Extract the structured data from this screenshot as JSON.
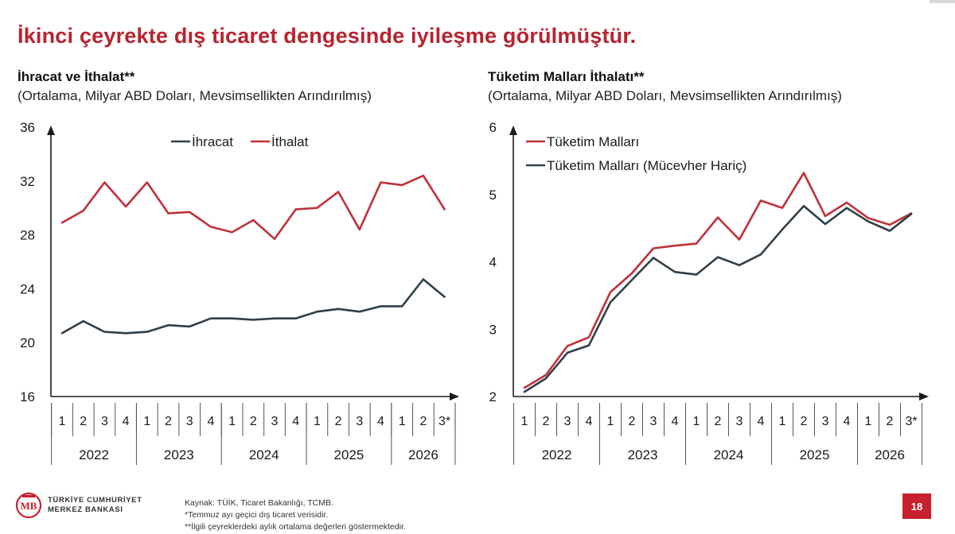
{
  "slide": {
    "title": "İkinci çeyrekte dış ticaret dengesinde iyileşme görülmüştür.",
    "page_number": "18",
    "footer": {
      "org_line1": "TÜRKİYE CUMHURİYET",
      "org_line2": "MERKEZ BANKASI",
      "source": "Kaynak: TÜİK, Ticaret Bakanlığı, TCMB.",
      "note1": "*Temmuz ayı geçici dış ticaret verisidir.",
      "note2": "**İlgili çeyreklerdeki aylık ortalama değerleri göstermektedir."
    }
  },
  "colors": {
    "title_red": "#b8232f",
    "series_red": "#c0303a",
    "series_dark": "#2f3f48",
    "axis": "#1a1a1a"
  },
  "chart_data": [
    {
      "type": "line",
      "title": "İhracat ve İthalat**",
      "subtitle": "(Ortalama, Milyar ABD Doları, Mevsimsellikten Arındırılmış)",
      "x": [
        "1",
        "2",
        "3",
        "4",
        "1",
        "2",
        "3",
        "4",
        "1",
        "2",
        "3",
        "4",
        "1",
        "2",
        "3",
        "4",
        "1",
        "2",
        "3*"
      ],
      "year_groups": [
        {
          "label": "2022",
          "count": 4
        },
        {
          "label": "2023",
          "count": 4
        },
        {
          "label": "2024",
          "count": 4
        },
        {
          "label": "2025",
          "count": 4
        },
        {
          "label": "2026",
          "count": 3
        }
      ],
      "ylim": [
        16,
        36
      ],
      "yticks": [
        16,
        20,
        24,
        28,
        32,
        36
      ],
      "legend": "top-center",
      "series": [
        {
          "name": "İhracat",
          "color": "#2f3f48",
          "values": [
            20.7,
            21.6,
            20.8,
            20.7,
            20.8,
            21.3,
            21.2,
            21.8,
            21.8,
            21.7,
            21.8,
            21.8,
            22.3,
            22.5,
            22.3,
            22.7,
            22.7,
            24.7,
            23.4
          ]
        },
        {
          "name": "İthalat",
          "color": "#c0303a",
          "values": [
            28.9,
            29.8,
            31.9,
            30.1,
            31.9,
            29.6,
            29.7,
            28.6,
            28.2,
            29.1,
            27.7,
            29.9,
            30.0,
            31.2,
            28.4,
            31.9,
            31.7,
            32.4,
            29.9
          ]
        }
      ]
    },
    {
      "type": "line",
      "title": "Tüketim Malları İthalatı**",
      "subtitle": "(Ortalama, Milyar ABD Doları, Mevsimsellikten Arındırılmış)",
      "x": [
        "1",
        "2",
        "3",
        "4",
        "1",
        "2",
        "3",
        "4",
        "1",
        "2",
        "3",
        "4",
        "1",
        "2",
        "3",
        "4",
        "1",
        "2",
        "3*"
      ],
      "year_groups": [
        {
          "label": "2022",
          "count": 4
        },
        {
          "label": "2023",
          "count": 4
        },
        {
          "label": "2024",
          "count": 4
        },
        {
          "label": "2025",
          "count": 4
        },
        {
          "label": "2026",
          "count": 3
        }
      ],
      "ylim": [
        2,
        6
      ],
      "yticks": [
        2,
        3,
        4,
        5,
        6
      ],
      "legend": "top-left",
      "series": [
        {
          "name": "Tüketim Malları",
          "color": "#c0303a",
          "values": [
            2.13,
            2.32,
            2.75,
            2.88,
            3.55,
            3.83,
            4.2,
            4.24,
            4.27,
            4.66,
            4.33,
            4.91,
            4.8,
            5.32,
            4.68,
            4.88,
            4.65,
            4.55,
            4.72
          ]
        },
        {
          "name": "Tüketim Malları (Mücevher Hariç)",
          "color": "#2f3f48",
          "values": [
            2.07,
            2.27,
            2.65,
            2.76,
            3.4,
            3.73,
            4.06,
            3.85,
            3.81,
            4.07,
            3.95,
            4.11,
            4.48,
            4.83,
            4.56,
            4.8,
            4.6,
            4.46,
            4.71
          ]
        }
      ]
    }
  ]
}
